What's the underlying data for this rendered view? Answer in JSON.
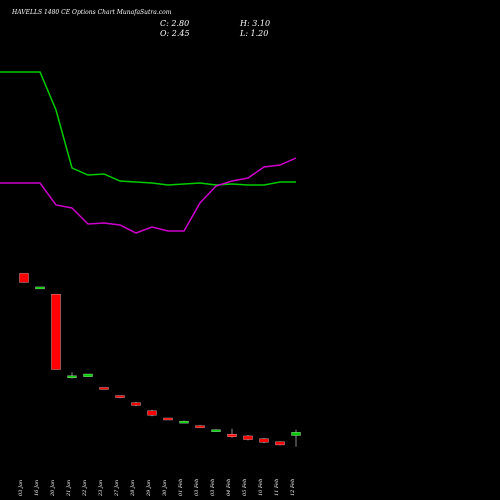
{
  "header": {
    "title": "HAVELLS 1480  CE Options  Chart MunafaSutra.com",
    "open_label": "O: 2.45",
    "high_label": "H: 3.10",
    "close_label": "C: 2.80",
    "low_label": "L: 1.20"
  },
  "chart_data": {
    "type": "candlestick",
    "title": "HAVELLS 1480  CE Options  Chart MunafaSutra.com",
    "x": [
      "03 Jan",
      "16 Jan",
      "20 Jan",
      "21 Jan",
      "22 Jan",
      "23 Jan",
      "27 Jan",
      "28 Jan",
      "29 Jan",
      "30 Jan",
      "01 Feb",
      "03 Feb",
      "03 Feb",
      "04 Feb",
      "05 Feb",
      "10 Feb",
      "11 Feb",
      "12 Feb"
    ],
    "ohlc": [
      {
        "o": 20.5,
        "h": 20.5,
        "l": 19.5,
        "c": 19.5
      },
      {
        "o": 19.0,
        "h": 19.0,
        "l": 19.0,
        "c": 19.0
      },
      {
        "o": 18.2,
        "h": 18.2,
        "l": 9.8,
        "c": 9.8
      },
      {
        "o": 8.9,
        "h": 9.5,
        "l": 8.8,
        "c": 9.1
      },
      {
        "o": 9.0,
        "h": 9.3,
        "l": 9.0,
        "c": 9.3
      },
      {
        "o": 7.8,
        "h": 7.8,
        "l": 7.6,
        "c": 7.7
      },
      {
        "o": 6.9,
        "h": 6.9,
        "l": 6.6,
        "c": 6.7
      },
      {
        "o": 6.1,
        "h": 6.2,
        "l": 5.7,
        "c": 5.8
      },
      {
        "o": 5.2,
        "h": 5.3,
        "l": 4.6,
        "c": 4.7
      },
      {
        "o": 4.4,
        "h": 4.4,
        "l": 4.3,
        "c": 4.35
      },
      {
        "o": 4.0,
        "h": 4.1,
        "l": 3.9,
        "c": 4.05
      },
      {
        "o": 3.55,
        "h": 3.6,
        "l": 3.3,
        "c": 3.35
      },
      {
        "o": 3.05,
        "h": 3.15,
        "l": 2.95,
        "c": 3.1
      },
      {
        "o": 2.6,
        "h": 3.2,
        "l": 2.2,
        "c": 2.3
      },
      {
        "o": 2.4,
        "h": 2.5,
        "l": 1.9,
        "c": 2.0
      },
      {
        "o": 2.1,
        "h": 2.2,
        "l": 1.6,
        "c": 1.7
      },
      {
        "o": 1.75,
        "h": 1.8,
        "l": 1.35,
        "c": 1.4
      },
      {
        "o": 2.45,
        "h": 3.1,
        "l": 1.2,
        "c": 2.8
      }
    ],
    "ma_series": [
      {
        "color": "#00cc00",
        "values": [
          72,
          72,
          110,
          168,
          175,
          174,
          181,
          182,
          183,
          185,
          184,
          183,
          185,
          184,
          185,
          185,
          182,
          182
        ]
      },
      {
        "color": "#cc00cc",
        "values": [
          183,
          183,
          205,
          208,
          224,
          223,
          225,
          233,
          227,
          231,
          231,
          203,
          186,
          181,
          178,
          167,
          165,
          158
        ]
      }
    ],
    "colors": {
      "up": "#00cc00",
      "down": "#ff0000",
      "background": "#000000",
      "text": "#ffffff"
    }
  }
}
